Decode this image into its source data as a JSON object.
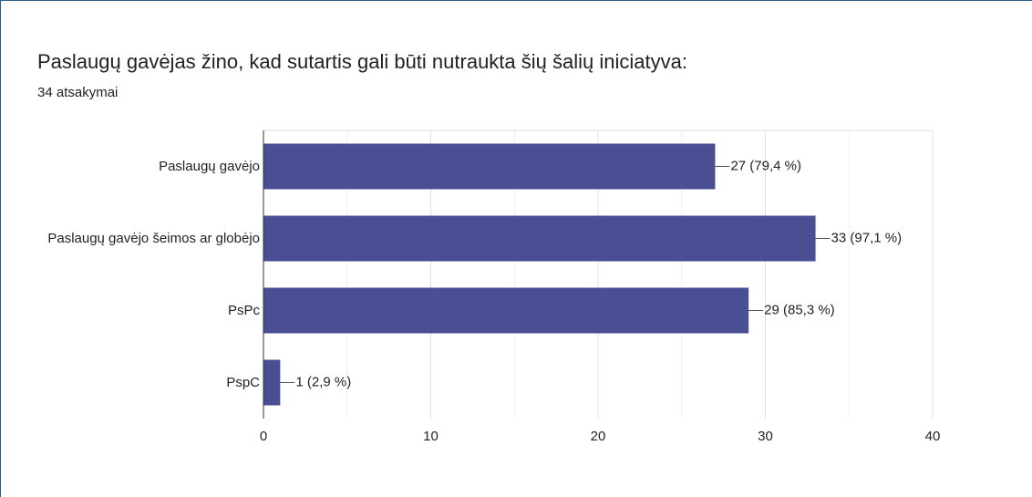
{
  "chart_data": {
    "type": "bar",
    "orientation": "horizontal",
    "title": "Paslaugų gavėjas žino, kad sutartis gali būti nutraukta šių šalių iniciatyva:",
    "subtitle": "34 atsakymai",
    "categories": [
      "Paslaugų gavėjo",
      "Paslaugų gavėjo šeimos ar globėjo",
      "PsPc",
      "PspC"
    ],
    "values": [
      27,
      33,
      29,
      1
    ],
    "value_labels": [
      "27 (79,4 %)",
      "33 (97,1 %)",
      "29 (85,3 %)",
      "1 (2,9 %)"
    ],
    "color": "#4a4f93",
    "xlim": [
      0,
      40
    ],
    "xticks": [
      0,
      10,
      20,
      30,
      40
    ],
    "minor_grid": [
      5,
      15,
      25,
      35
    ],
    "grid": true
  }
}
